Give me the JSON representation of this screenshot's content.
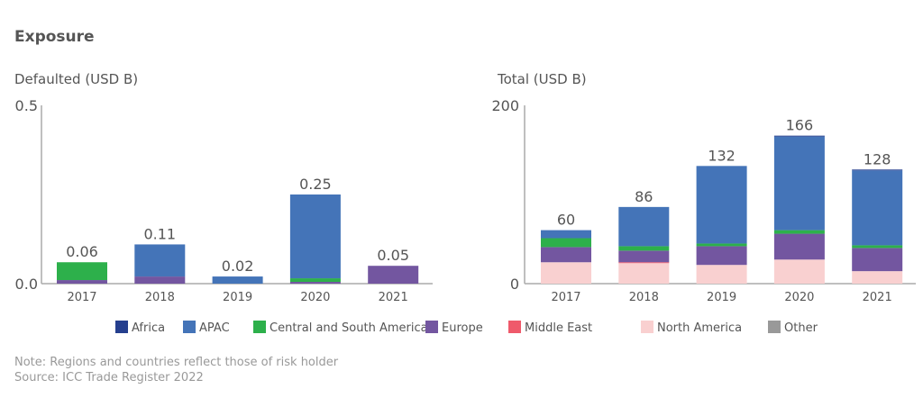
{
  "title": "Exposure",
  "note": "Note: Regions and countries reflect those of risk holder",
  "source": "Source: ICC Trade Register 2022",
  "legend": [
    {
      "name": "Africa",
      "color": "#253f8e"
    },
    {
      "name": "APAC",
      "color": "#4474b8"
    },
    {
      "name": "Central and South America",
      "color": "#2db04b"
    },
    {
      "name": "Europe",
      "color": "#7356a0"
    },
    {
      "name": "Middle East",
      "color": "#ef5a6b"
    },
    {
      "name": "North America",
      "color": "#f9d0d0"
    },
    {
      "name": "Other",
      "color": "#999999"
    }
  ],
  "chart_data": [
    {
      "type": "bar",
      "stacked": true,
      "title": "Defaulted (USD B)",
      "categories": [
        "2017",
        "2018",
        "2019",
        "2020",
        "2021"
      ],
      "ylim": [
        0,
        0.5
      ],
      "yticks": [
        "0.0",
        "0.5"
      ],
      "totals": [
        "0.06",
        "0.11",
        "0.02",
        "0.25",
        "0.05"
      ],
      "series": [
        {
          "name": "North America",
          "values": [
            0,
            0,
            0,
            0,
            0
          ]
        },
        {
          "name": "Middle East",
          "values": [
            0,
            0,
            0,
            0,
            0
          ]
        },
        {
          "name": "Europe",
          "values": [
            0.01,
            0.02,
            0,
            0.005,
            0.05
          ]
        },
        {
          "name": "Central and South America",
          "values": [
            0.05,
            0,
            0,
            0.01,
            0
          ]
        },
        {
          "name": "APAC",
          "values": [
            0,
            0.09,
            0.02,
            0.235,
            0
          ]
        },
        {
          "name": "Africa",
          "values": [
            0,
            0,
            0,
            0,
            0
          ]
        },
        {
          "name": "Other",
          "values": [
            0,
            0,
            0,
            0,
            0
          ]
        }
      ],
      "grid": false
    },
    {
      "type": "bar",
      "stacked": true,
      "title": "Total (USD B)",
      "categories": [
        "2017",
        "2018",
        "2019",
        "2020",
        "2021"
      ],
      "ylim": [
        0,
        200
      ],
      "yticks": [
        "0",
        "200"
      ],
      "totals": [
        "60",
        "86",
        "132",
        "166",
        "128"
      ],
      "series": [
        {
          "name": "North America",
          "values": [
            24,
            23,
            21,
            27,
            14
          ]
        },
        {
          "name": "Middle East",
          "values": [
            0,
            1,
            0,
            0,
            0
          ]
        },
        {
          "name": "Europe",
          "values": [
            17,
            13,
            21,
            29,
            26
          ]
        },
        {
          "name": "Central and South America",
          "values": [
            10,
            5,
            3,
            4,
            3
          ]
        },
        {
          "name": "APAC",
          "values": [
            9,
            44,
            87,
            105,
            84
          ]
        },
        {
          "name": "Africa",
          "values": [
            0,
            0,
            0,
            1,
            1
          ]
        },
        {
          "name": "Other",
          "values": [
            0,
            0,
            0,
            0,
            0
          ]
        }
      ],
      "grid": false
    }
  ]
}
